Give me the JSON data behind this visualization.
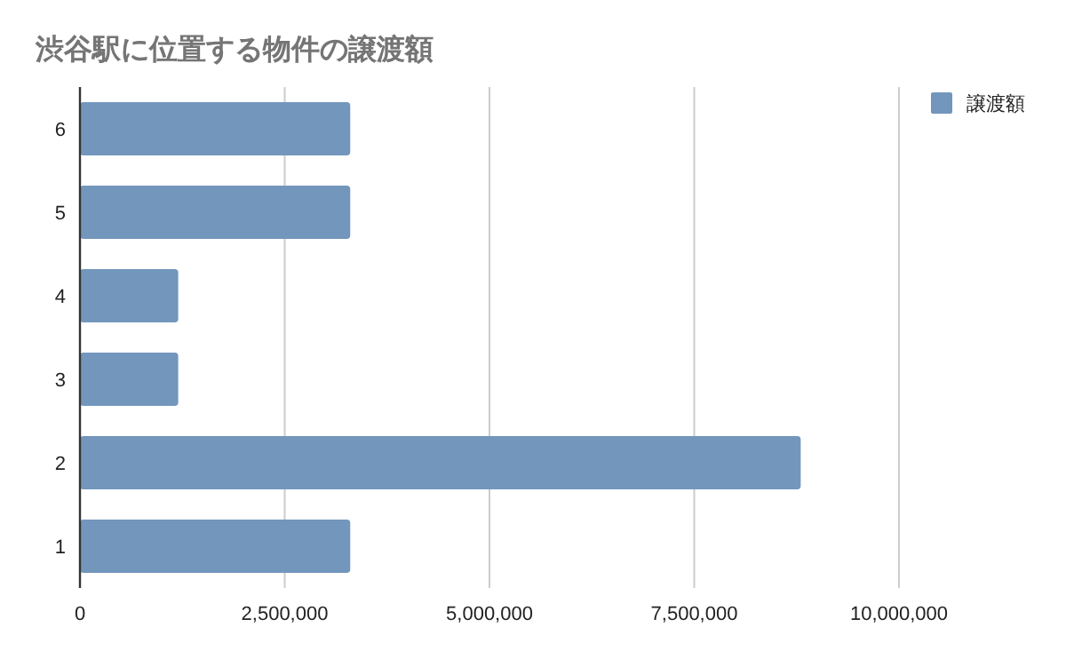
{
  "chart_data": {
    "type": "bar",
    "orientation": "horizontal",
    "title": "渋谷駅に位置する物件の譲渡額",
    "categories": [
      "6",
      "5",
      "4",
      "3",
      "2",
      "1"
    ],
    "series": [
      {
        "name": "譲渡額",
        "color": "#7396bc",
        "values": [
          3300000,
          3300000,
          1200000,
          1200000,
          8800000,
          3300000
        ]
      }
    ],
    "xlim": [
      0,
      10000000
    ],
    "xticks": [
      0,
      {
        "value": 2500000,
        "label": "2,500,000"
      },
      {
        "value": 5000000,
        "label": "5,000,000"
      },
      {
        "value": 7500000,
        "label": "7,500,000"
      },
      {
        "value": 10000000,
        "label": "10,000,000"
      }
    ],
    "grid": "x",
    "legend": "top right"
  }
}
